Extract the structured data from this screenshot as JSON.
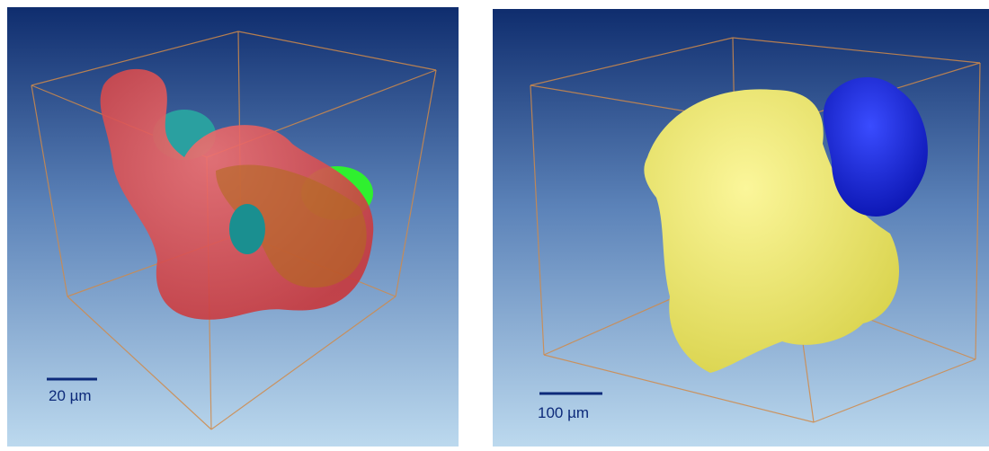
{
  "panels": [
    {
      "scale_bar_label": "20 µm"
    },
    {
      "scale_bar_label": "100 µm"
    }
  ]
}
